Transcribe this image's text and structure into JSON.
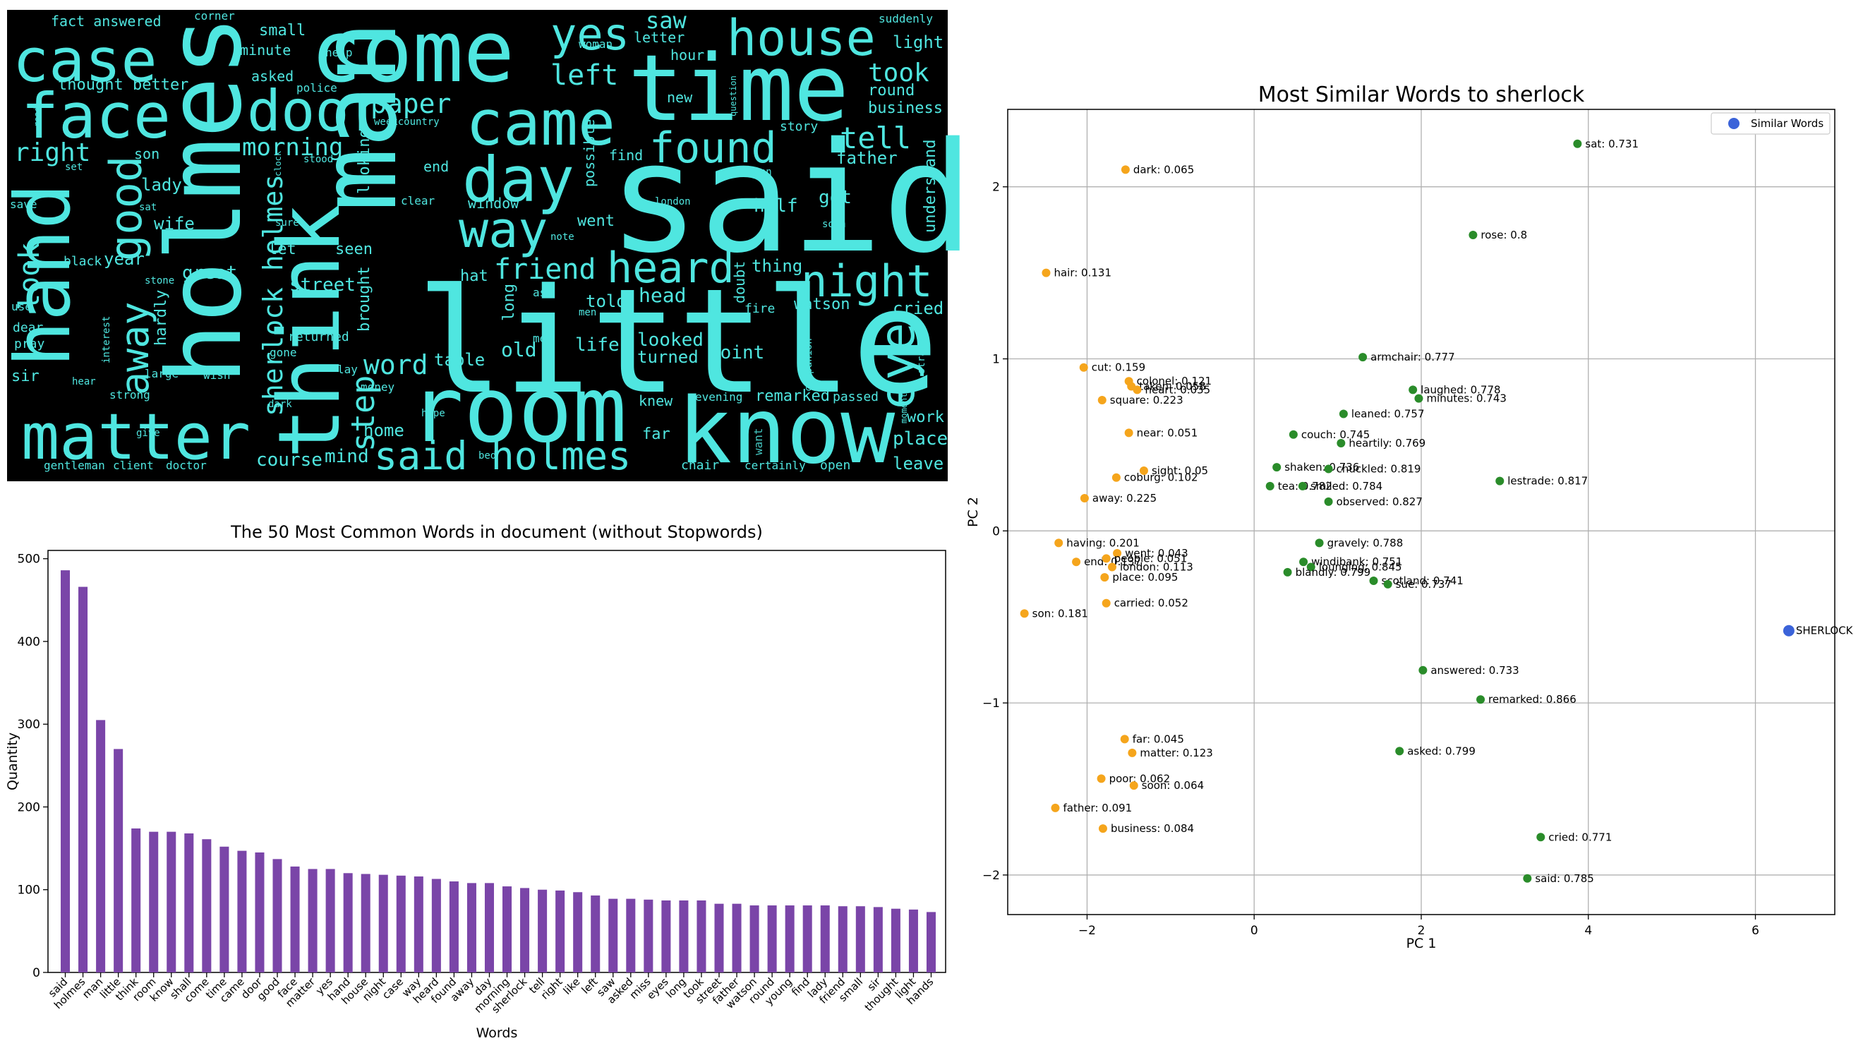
{
  "colors": {
    "wordcloud_bg": "#000000",
    "wordcloud_text": "#4fe6e0",
    "bar": "#7a45a8",
    "similar_green": "#2a8c2a",
    "other_orange": "#f5a51c",
    "sherlock_blue": "#3b63d9",
    "grid": "#b0b0b0"
  },
  "chart_data": [
    {
      "type": "wordcloud",
      "words": [
        {
          "text": "said",
          "weight": 1.0
        },
        {
          "text": "little",
          "weight": 0.98
        },
        {
          "text": "man",
          "weight": 0.9
        },
        {
          "text": "holmes",
          "weight": 0.85
        },
        {
          "text": "think",
          "weight": 0.72
        },
        {
          "text": "room",
          "weight": 0.7
        },
        {
          "text": "know",
          "weight": 0.68
        },
        {
          "text": "time",
          "weight": 0.66
        },
        {
          "text": "come",
          "weight": 0.62
        },
        {
          "text": "came",
          "weight": 0.55
        },
        {
          "text": "hand",
          "weight": 0.55
        },
        {
          "text": "matter",
          "weight": 0.52
        },
        {
          "text": "face",
          "weight": 0.45
        },
        {
          "text": "door",
          "weight": 0.42
        },
        {
          "text": "case",
          "weight": 0.42
        },
        {
          "text": "house",
          "weight": 0.38
        },
        {
          "text": "day",
          "weight": 0.4
        },
        {
          "text": "found",
          "weight": 0.35
        },
        {
          "text": "heard",
          "weight": 0.34
        },
        {
          "text": "night",
          "weight": 0.34
        },
        {
          "text": "way",
          "weight": 0.32
        },
        {
          "text": "good",
          "weight": 0.3
        },
        {
          "text": "yes",
          "weight": 0.3
        },
        {
          "text": "eye",
          "weight": 0.28
        },
        {
          "text": "said holmes",
          "weight": 0.3
        },
        {
          "text": "away",
          "weight": 0.26
        },
        {
          "text": "sherlock holmes",
          "weight": 0.22
        },
        {
          "text": "step",
          "weight": 0.24
        },
        {
          "text": "word",
          "weight": 0.22
        },
        {
          "text": "tell",
          "weight": 0.22
        },
        {
          "text": "left",
          "weight": 0.2
        },
        {
          "text": "took",
          "weight": 0.18
        },
        {
          "text": "paper",
          "weight": 0.2
        },
        {
          "text": "morning",
          "weight": 0.18
        },
        {
          "text": "friend",
          "weight": 0.2
        },
        {
          "text": "look",
          "weight": 0.2
        },
        {
          "text": "right",
          "weight": 0.18
        },
        {
          "text": "saw",
          "weight": 0.18
        },
        {
          "text": "light",
          "weight": 0.12
        },
        {
          "text": "round",
          "weight": 0.12
        },
        {
          "text": "business",
          "weight": 0.12
        },
        {
          "text": "father",
          "weight": 0.12
        },
        {
          "text": "understand",
          "weight": 0.12
        },
        {
          "text": "cried",
          "weight": 0.12
        },
        {
          "text": "place",
          "weight": 0.13
        },
        {
          "text": "leave",
          "weight": 0.12
        },
        {
          "text": "work",
          "weight": 0.11
        },
        {
          "text": "got",
          "weight": 0.12
        },
        {
          "text": "half",
          "weight": 0.12
        },
        {
          "text": "thing",
          "weight": 0.12
        },
        {
          "text": "watson",
          "weight": 0.11
        },
        {
          "text": "head",
          "weight": 0.14
        },
        {
          "text": "told",
          "weight": 0.12
        },
        {
          "text": "life",
          "weight": 0.12
        },
        {
          "text": "looked",
          "weight": 0.12
        },
        {
          "text": "turned",
          "weight": 0.12
        },
        {
          "text": "point",
          "weight": 0.12
        },
        {
          "text": "old",
          "weight": 0.13
        },
        {
          "text": "table",
          "weight": 0.12
        },
        {
          "text": "street",
          "weight": 0.12
        },
        {
          "text": "brought",
          "weight": 0.11
        },
        {
          "text": "looking",
          "weight": 0.11
        },
        {
          "text": "course",
          "weight": 0.12
        },
        {
          "text": "mind",
          "weight": 0.12
        },
        {
          "text": "home",
          "weight": 0.11
        },
        {
          "text": "great",
          "weight": 0.12
        },
        {
          "text": "hardly",
          "weight": 0.11
        },
        {
          "text": "lady",
          "weight": 0.11
        },
        {
          "text": "wife",
          "weight": 0.11
        },
        {
          "text": "year",
          "weight": 0.11
        },
        {
          "text": "son",
          "weight": 0.1
        },
        {
          "text": "thought better",
          "weight": 0.1
        },
        {
          "text": "fact answered",
          "weight": 0.09
        },
        {
          "text": "small",
          "weight": 0.09
        },
        {
          "text": "minute",
          "weight": 0.09
        },
        {
          "text": "asked",
          "weight": 0.09
        },
        {
          "text": "letter",
          "weight": 0.09
        },
        {
          "text": "hour",
          "weight": 0.09
        },
        {
          "text": "new",
          "weight": 0.09
        },
        {
          "text": "end",
          "weight": 0.09
        },
        {
          "text": "find",
          "weight": 0.09
        },
        {
          "text": "went",
          "weight": 0.09
        },
        {
          "text": "seen",
          "weight": 0.09
        },
        {
          "text": "let",
          "weight": 0.09
        },
        {
          "text": "hat",
          "weight": 0.09
        },
        {
          "text": "window",
          "weight": 0.09
        },
        {
          "text": "long",
          "weight": 0.09
        },
        {
          "text": "doubt",
          "weight": 0.08
        },
        {
          "text": "possible",
          "weight": 0.08
        },
        {
          "text": "far",
          "weight": 0.09
        },
        {
          "text": "knew",
          "weight": 0.09
        },
        {
          "text": "remarked",
          "weight": 0.09
        },
        {
          "text": "passed",
          "weight": 0.08
        },
        {
          "text": "want",
          "weight": 0.08
        },
        {
          "text": "open",
          "weight": 0.08
        },
        {
          "text": "chair",
          "weight": 0.08
        },
        {
          "text": "certainly",
          "weight": 0.08
        },
        {
          "text": "evening",
          "weight": 0.08
        },
        {
          "text": "gentleman",
          "weight": 0.08
        },
        {
          "text": "client",
          "weight": 0.08
        },
        {
          "text": "doctor",
          "weight": 0.08
        },
        {
          "text": "sir",
          "weight": 0.09
        },
        {
          "text": "pray",
          "weight": 0.08
        },
        {
          "text": "dear",
          "weight": 0.08
        },
        {
          "text": "use",
          "weight": 0.07
        },
        {
          "text": "save",
          "weight": 0.07
        },
        {
          "text": "black",
          "weight": 0.08
        },
        {
          "text": "stone",
          "weight": 0.07
        },
        {
          "text": "large",
          "weight": 0.07
        },
        {
          "text": "strong",
          "weight": 0.07
        },
        {
          "text": "hear",
          "weight": 0.07
        },
        {
          "text": "interest",
          "weight": 0.06
        },
        {
          "text": "wish",
          "weight": 0.07
        },
        {
          "text": "gone",
          "weight": 0.07
        },
        {
          "text": "dark",
          "weight": 0.07
        },
        {
          "text": "returned",
          "weight": 0.07
        },
        {
          "text": "lay",
          "weight": 0.07
        },
        {
          "text": "money",
          "weight": 0.07
        },
        {
          "text": "hope",
          "weight": 0.07
        },
        {
          "text": "bed",
          "weight": 0.07
        },
        {
          "text": "met",
          "weight": 0.07
        },
        {
          "text": "ask",
          "weight": 0.07
        },
        {
          "text": "men",
          "weight": 0.06
        },
        {
          "text": "fire",
          "weight": 0.07
        },
        {
          "text": "companion",
          "weight": 0.06
        },
        {
          "text": "strange",
          "weight": 0.06
        },
        {
          "text": "give",
          "weight": 0.06
        },
        {
          "text": "stood",
          "weight": 0.06
        },
        {
          "text": "police",
          "weight": 0.06
        },
        {
          "text": "help",
          "weight": 0.06
        },
        {
          "text": "corner",
          "weight": 0.06
        },
        {
          "text": "woman",
          "weight": 0.06
        },
        {
          "text": "suddenly",
          "weight": 0.06
        },
        {
          "text": "question",
          "weight": 0.05
        },
        {
          "text": "story",
          "weight": 0.06
        },
        {
          "text": "mean",
          "weight": 0.06
        },
        {
          "text": "london",
          "weight": 0.06
        },
        {
          "text": "note",
          "weight": 0.06
        },
        {
          "text": "clear",
          "weight": 0.06
        },
        {
          "text": "sure",
          "weight": 0.06
        },
        {
          "text": "sat",
          "weight": 0.06
        },
        {
          "text": "clock",
          "weight": 0.05
        },
        {
          "text": "set",
          "weight": 0.06
        },
        {
          "text": "weekcountry",
          "weight": 0.05
        },
        {
          "text": "soon",
          "weight": 0.06
        },
        {
          "text": "moment",
          "weight": 0.05
        },
        {
          "text": "read",
          "weight": 0.05
        }
      ]
    },
    {
      "type": "bar",
      "title": "The 50 Most Common Words in document (without Stopwords)",
      "xlabel": "Words",
      "ylabel": "Quantity",
      "ylim": [
        0,
        510
      ],
      "yticks": [
        0,
        100,
        200,
        300,
        400,
        500
      ],
      "categories": [
        "said",
        "holmes",
        "man",
        "little",
        "think",
        "room",
        "know",
        "shall",
        "come",
        "time",
        "came",
        "door",
        "good",
        "face",
        "matter",
        "yes",
        "hand",
        "house",
        "night",
        "case",
        "way",
        "heard",
        "found",
        "away",
        "day",
        "morning",
        "sherlock",
        "tell",
        "right",
        "like",
        "left",
        "saw",
        "asked",
        "miss",
        "eyes",
        "long",
        "took",
        "street",
        "father",
        "watson",
        "round",
        "young",
        "find",
        "lady",
        "friend",
        "small",
        "sir",
        "thought",
        "light",
        "hands"
      ],
      "values": [
        486,
        466,
        305,
        270,
        174,
        170,
        170,
        168,
        161,
        152,
        147,
        145,
        137,
        128,
        125,
        125,
        120,
        119,
        118,
        117,
        116,
        113,
        110,
        108,
        108,
        104,
        102,
        100,
        99,
        97,
        93,
        89,
        89,
        88,
        87,
        87,
        87,
        83,
        83,
        81,
        81,
        81,
        81,
        81,
        80,
        80,
        79,
        77,
        76,
        73
      ]
    },
    {
      "type": "scatter",
      "title": "Most Similar Words to sherlock",
      "xlabel": "PC 1",
      "ylabel": "PC 2",
      "xlim": [
        -2.95,
        6.95
      ],
      "ylim": [
        -2.23,
        2.45
      ],
      "xticks": [
        -2,
        0,
        2,
        4,
        6
      ],
      "yticks": [
        -2,
        -1,
        0,
        1,
        2
      ],
      "tick_labels_x": [
        "−2",
        "0",
        "2",
        "4",
        "6"
      ],
      "tick_labels_y": [
        "−2",
        "−1",
        "0",
        "1",
        "2"
      ],
      "legend": {
        "label": "Similar Words",
        "position": "top-right"
      },
      "grid": true,
      "series": [
        {
          "group": "similar",
          "points": [
            {
              "label": "sat: 0.731",
              "x": 3.87,
              "y": 2.25
            },
            {
              "label": "rose: 0.8",
              "x": 2.62,
              "y": 1.72
            },
            {
              "label": "armchair: 0.777",
              "x": 1.3,
              "y": 1.01
            },
            {
              "label": "laughed: 0.778",
              "x": 1.9,
              "y": 0.82
            },
            {
              "label": "minutes: 0.743",
              "x": 1.97,
              "y": 0.77
            },
            {
              "label": "leaned: 0.757",
              "x": 1.07,
              "y": 0.68
            },
            {
              "label": "couch: 0.745",
              "x": 0.47,
              "y": 0.56
            },
            {
              "label": "heartily: 0.769",
              "x": 1.04,
              "y": 0.51
            },
            {
              "label": "shaken: 0.736",
              "x": 0.27,
              "y": 0.37
            },
            {
              "label": "chuckled: 0.819",
              "x": 0.89,
              "y": 0.36
            },
            {
              "label": "lestrade: 0.817",
              "x": 2.94,
              "y": 0.29
            },
            {
              "label": "tea: 0.782",
              "x": 0.19,
              "y": 0.26
            },
            {
              "label": "smiled: 0.784",
              "x": 0.58,
              "y": 0.26
            },
            {
              "label": "observed: 0.827",
              "x": 0.89,
              "y": 0.17
            },
            {
              "label": "gravely: 0.788",
              "x": 0.78,
              "y": -0.07
            },
            {
              "label": "windibank: 0.751",
              "x": 0.59,
              "y": -0.18
            },
            {
              "label": "lounging: 0.845",
              "x": 0.68,
              "y": -0.21
            },
            {
              "label": "blandly: 0.799",
              "x": 0.4,
              "y": -0.24
            },
            {
              "label": "scotland: 0.741",
              "x": 1.43,
              "y": -0.29
            },
            {
              "label": "sue: 0.737",
              "x": 1.6,
              "y": -0.31
            },
            {
              "label": "answered: 0.733",
              "x": 2.02,
              "y": -0.81
            },
            {
              "label": "remarked: 0.866",
              "x": 2.71,
              "y": -0.98
            },
            {
              "label": "asked: 0.799",
              "x": 1.74,
              "y": -1.28
            },
            {
              "label": "cried: 0.771",
              "x": 3.43,
              "y": -1.78
            },
            {
              "label": "said: 0.785",
              "x": 3.27,
              "y": -2.02
            }
          ]
        },
        {
          "group": "other",
          "points": [
            {
              "label": "dark: 0.065",
              "x": -1.54,
              "y": 2.1
            },
            {
              "label": "hair: 0.131",
              "x": -2.49,
              "y": 1.5
            },
            {
              "label": "cut: 0.159",
              "x": -2.04,
              "y": 0.95
            },
            {
              "label": "colonel: 0.121",
              "x": -1.5,
              "y": 0.87
            },
            {
              "label": "taken: 0.058",
              "x": -1.47,
              "y": 0.84
            },
            {
              "label": "heart: 0.035",
              "x": -1.4,
              "y": 0.82
            },
            {
              "label": "square: 0.223",
              "x": -1.82,
              "y": 0.76
            },
            {
              "label": "near: 0.051",
              "x": -1.5,
              "y": 0.57
            },
            {
              "label": "sight: 0.05",
              "x": -1.32,
              "y": 0.35
            },
            {
              "label": "coburg: 0.102",
              "x": -1.65,
              "y": 0.31
            },
            {
              "label": "away: 0.225",
              "x": -2.03,
              "y": 0.19
            },
            {
              "label": "having: 0.201",
              "x": -2.34,
              "y": -0.07
            },
            {
              "label": "went: 0.043",
              "x": -1.64,
              "y": -0.13
            },
            {
              "label": "end: 0.137",
              "x": -2.13,
              "y": -0.18
            },
            {
              "label": "people: 0.051",
              "x": -1.77,
              "y": -0.16
            },
            {
              "label": "london: 0.113",
              "x": -1.7,
              "y": -0.21
            },
            {
              "label": "place: 0.095",
              "x": -1.79,
              "y": -0.27
            },
            {
              "label": "carried: 0.052",
              "x": -1.77,
              "y": -0.42
            },
            {
              "label": "son: 0.181",
              "x": -2.75,
              "y": -0.48
            },
            {
              "label": "far: 0.045",
              "x": -1.55,
              "y": -1.21
            },
            {
              "label": "matter: 0.123",
              "x": -1.46,
              "y": -1.29
            },
            {
              "label": "poor: 0.062",
              "x": -1.83,
              "y": -1.44
            },
            {
              "label": "soon: 0.064",
              "x": -1.44,
              "y": -1.48
            },
            {
              "label": "father: 0.091",
              "x": -2.38,
              "y": -1.61
            },
            {
              "label": "business: 0.084",
              "x": -1.81,
              "y": -1.73
            }
          ]
        },
        {
          "group": "target",
          "points": [
            {
              "label": "SHERLOCK",
              "x": 6.4,
              "y": -0.58
            }
          ]
        }
      ]
    }
  ]
}
